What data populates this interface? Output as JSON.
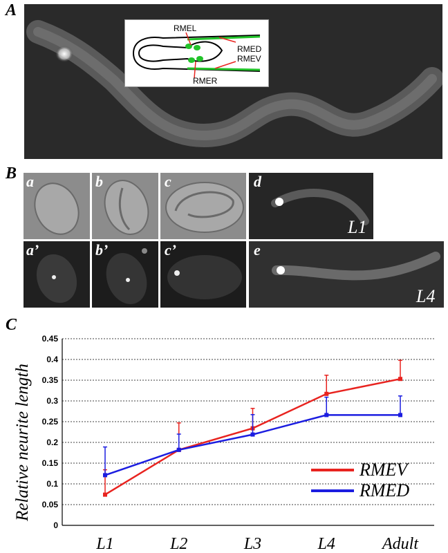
{
  "panels": {
    "A": "A",
    "B": "B",
    "C": "C"
  },
  "inset": {
    "labels": [
      "RMEL",
      "RMED",
      "RMEV",
      "RMER"
    ]
  },
  "subpanels": {
    "a": "a",
    "b": "b",
    "c": "c",
    "d": "d",
    "a_prime": "a’",
    "b_prime": "b’",
    "c_prime": "c’",
    "e": "e"
  },
  "stages": {
    "d": "L1",
    "e": "L4"
  },
  "colors": {
    "rmev": "#e8231f",
    "rmed": "#1b1de0",
    "gfp": "#22c32a",
    "arrow": "#e8231f"
  },
  "chart_data": {
    "type": "line",
    "categories": [
      "L1",
      "L2",
      "L3",
      "L4",
      "Adult"
    ],
    "ylabel": "Relative neurite length",
    "xlabel": "",
    "ylim": [
      0,
      0.45
    ],
    "yticks": [
      "0",
      "0.05",
      "0.1",
      "0.15",
      "0.2",
      "0.25",
      "0.3",
      "0.35",
      "0.4",
      "0.45"
    ],
    "grid": true,
    "legend": "bottom-right",
    "series": [
      {
        "name": "RMEV",
        "color": "#e8231f",
        "values": [
          0.074,
          0.182,
          0.234,
          0.317,
          0.353
        ],
        "error": [
          0.06,
          0.065,
          0.048,
          0.045,
          0.045
        ]
      },
      {
        "name": "RMED",
        "color": "#1b1de0",
        "values": [
          0.121,
          0.182,
          0.219,
          0.266,
          0.266
        ],
        "error": [
          0.068,
          0.038,
          0.048,
          0.043,
          0.046
        ]
      }
    ]
  }
}
